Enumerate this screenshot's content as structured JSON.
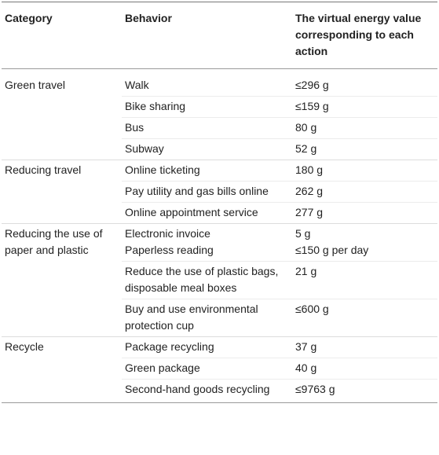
{
  "table": {
    "header": [
      "Category",
      "Behavior",
      "The virtual energy value corresponding to each action"
    ],
    "groups": [
      {
        "category": "Green travel",
        "rows": [
          [
            "Walk",
            "≤296 g"
          ],
          [
            "Bike sharing",
            "≤159 g"
          ],
          [
            "Bus",
            "80 g"
          ],
          [
            "Subway",
            "52 g"
          ]
        ]
      },
      {
        "category": "Reducing travel",
        "rows": [
          [
            "Online ticketing",
            "180 g"
          ],
          [
            "Pay utility and gas bills online",
            "262 g"
          ],
          [
            "Online appointment service",
            "277 g"
          ]
        ]
      },
      {
        "category": "Reducing the use of paper and plastic",
        "rows": [
          [
            "Electronic invoice\nPaperless reading",
            "5 g\n≤150 g per day"
          ],
          [
            "Reduce the use of plastic bags, disposable meal boxes",
            "21 g"
          ],
          [
            "Buy and use environmental protection cup",
            "≤600 g"
          ]
        ]
      },
      {
        "category": "Recycle",
        "rows": [
          [
            "Package recycling",
            "37 g"
          ],
          [
            "Green package",
            "40 g"
          ],
          [
            "Second-hand goods recycling",
            "≤9763 g"
          ]
        ]
      }
    ]
  }
}
